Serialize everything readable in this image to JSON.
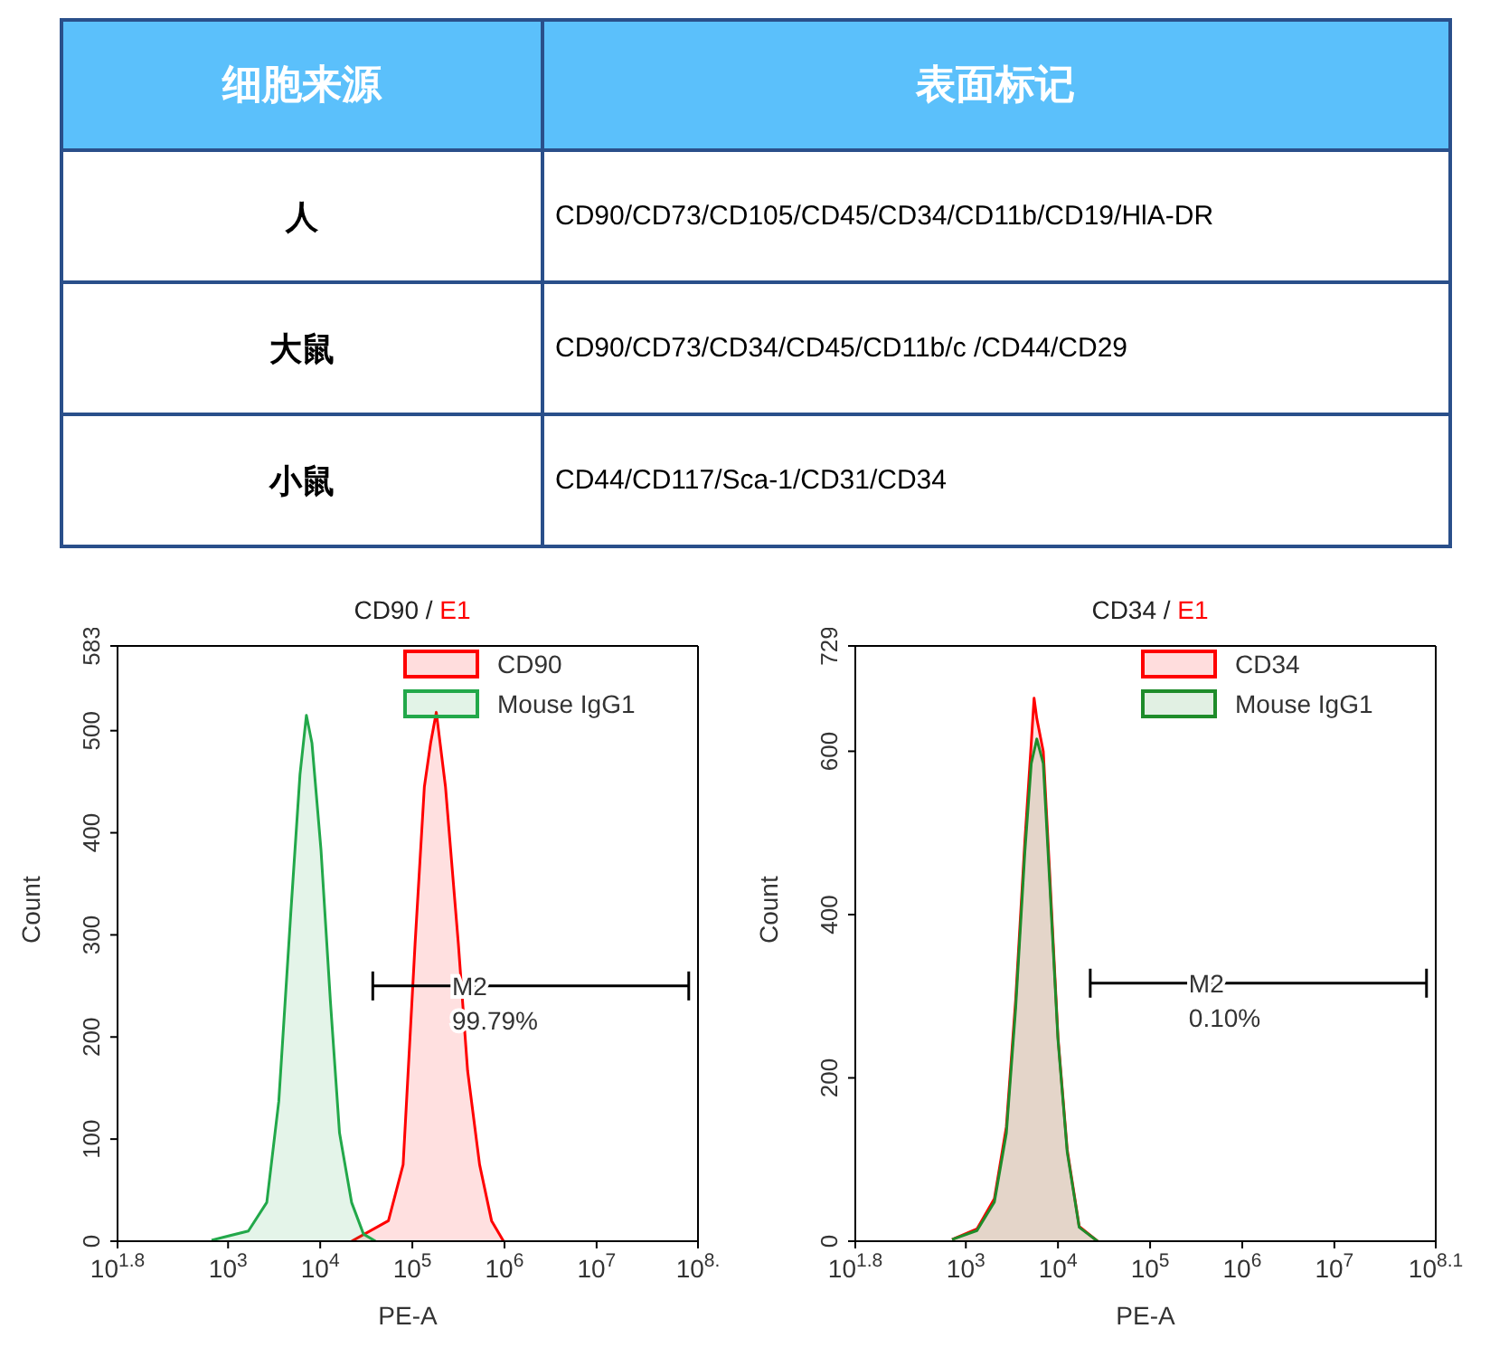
{
  "chart_data": [
    {
      "type": "other",
      "annotations": [
        "细胞来源",
        "表面标记",
        "人",
        "CD90/CD73/CD105/CD45/CD34/CD11b/CD19/HlA-DR",
        "大鼠",
        "CD90/CD73/CD34/CD45/CD11b/c /CD44/CD29",
        "小鼠",
        "CD44/CD117/Sca-1/CD31/CD34"
      ]
    },
    {
      "type": "area",
      "title": "CD90 / E1",
      "xlabel": "PE-A",
      "ylabel": "Count",
      "log": "x",
      "legend": "top right",
      "xlim": [
        63.1,
        126000000
      ],
      "xticks": [
        {
          "value": 63.1,
          "label": "10$^{1.8}$"
        },
        {
          "value": 1000,
          "label": "10$^{3}$"
        },
        {
          "value": 10000,
          "label": "10$^{4}$"
        },
        {
          "value": 100000,
          "label": "10$^{5}$"
        },
        {
          "value": 1000000,
          "label": "10$^{6}$"
        },
        {
          "value": 10000000,
          "label": "10$^{7}$"
        },
        {
          "value": 126000000,
          "label": "10$^{8.}$"
        }
      ],
      "ylim": [
        0,
        583
      ],
      "yticks": [
        0,
        100,
        200,
        300,
        400,
        500,
        583
      ],
      "annotations": [
        {
          "text": "M2",
          "x": 270000,
          "y": 250
        },
        "99.79%"
      ],
      "series": [
        {
          "name": "CD90",
          "color": "#ff0000",
          "x": [
            21900,
            55000,
            79400,
            107000,
            135000,
            158000,
            182000,
            229000,
            316000,
            398000,
            537000,
            724000,
            977000
          ],
          "values": [
            0,
            20,
            75,
            291,
            445,
            488,
            518,
            445,
            291,
            167,
            75,
            20,
            0
          ]
        },
        {
          "name": "Mouse IgG1",
          "color": "#22a84a",
          "x": [
            661,
            1660,
            2630,
            3550,
            4790,
            6030,
            7080,
            8130,
            10200,
            12900,
            16200,
            21900,
            29500,
            39800
          ],
          "values": [
            1,
            10,
            38,
            137,
            321,
            457,
            515,
            488,
            383,
            235,
            106,
            38,
            7,
            0
          ]
        },
        {
          "type": "line",
          "color": "#000000",
          "x": [
            37200,
            100000000
          ],
          "values": [
            250,
            250
          ]
        }
      ]
    },
    {
      "type": "area",
      "title": "CD34 / E1",
      "xlabel": "PE-A",
      "ylabel": "Count",
      "log": "x",
      "legend": "top right",
      "xlim": [
        63.1,
        126000000
      ],
      "xticks": [
        {
          "value": 63.1,
          "label": "10$^{1.8}$"
        },
        {
          "value": 1000,
          "label": "10$^{3}$"
        },
        {
          "value": 10000,
          "label": "10$^{4}$"
        },
        {
          "value": 100000,
          "label": "10$^{5}$"
        },
        {
          "value": 1000000,
          "label": "10$^{6}$"
        },
        {
          "value": 10000000,
          "label": "10$^{7}$"
        },
        {
          "value": 126000000,
          "label": "10$^{8.1}$"
        }
      ],
      "ylim": [
        0,
        729
      ],
      "yticks": [
        0,
        200,
        400,
        600,
        729
      ],
      "annotations": [
        {
          "text": "M2",
          "x": 263000,
          "y": 316
        },
        "0.10%"
      ],
      "series": [
        {
          "name": "CD34",
          "color": "#ff0000",
          "x": [
            708,
            1320,
            2040,
            2750,
            3470,
            4370,
            5130,
            5500,
            5890,
            6920,
            8130,
            10000,
            12600,
            17000,
            26900
          ],
          "values": [
            2,
            15,
            52,
            140,
            295,
            490,
            610,
            665,
            640,
            600,
            450,
            250,
            112,
            18,
            0
          ]
        },
        {
          "name": "Mouse IgG1",
          "color": "#1e8c2a",
          "x": [
            708,
            1320,
            2040,
            2750,
            3470,
            4370,
            5130,
            5890,
            6920,
            8130,
            10000,
            12600,
            17000,
            26900
          ],
          "values": [
            2,
            13,
            48,
            132,
            285,
            477,
            585,
            615,
            585,
            439,
            247,
            109,
            17,
            0
          ]
        },
        {
          "type": "line",
          "color": "#000000",
          "x": [
            22400,
            100000000
          ],
          "values": [
            316,
            316
          ]
        }
      ]
    }
  ]
}
